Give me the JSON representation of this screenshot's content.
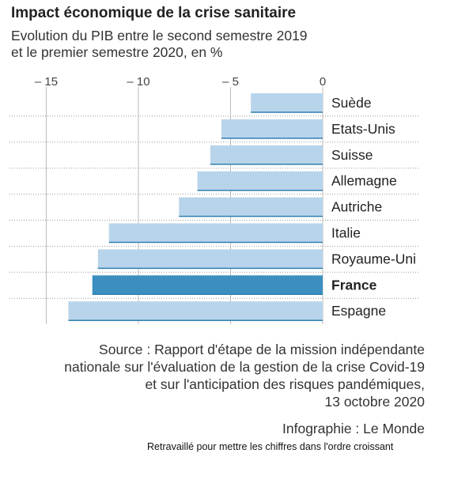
{
  "header": {
    "title": "Impact économique de la crise sanitaire",
    "subtitle_line1": "Evolution du PIB entre le second semestre 2019",
    "subtitle_line2": "et le premier semestre 2020, en %"
  },
  "footer": {
    "source_line1": "Source : Rapport d'étape de la mission indépendante",
    "source_line2": "nationale sur l'évaluation de la gestion de la crise Covid-19",
    "source_line3": "et sur l'anticipation des risques pandémiques,",
    "source_line4": "13 octobre 2020",
    "credit": "Infographie : Le Monde",
    "note": "Retravaillé pour mettre les chiffres dans l'ordre croissant"
  },
  "colors": {
    "bar": "#b8d4ea",
    "bar_highlight": "#3a8fc0",
    "bar_edge": "#2f7fb0",
    "grid": "#bbbbbb",
    "separator": "#999999"
  },
  "chart_data": {
    "type": "bar",
    "orientation": "horizontal",
    "title": "Impact économique de la crise sanitaire",
    "subtitle": "Evolution du PIB entre le second semestre 2019 et le premier semestre 2020, en %",
    "categories": [
      "Suède",
      "Etats-Unis",
      "Suisse",
      "Allemagne",
      "Autriche",
      "Italie",
      "Royaume-Uni",
      "France",
      "Espagne"
    ],
    "values": [
      -3.9,
      -5.5,
      -6.1,
      -6.8,
      -7.8,
      -11.6,
      -12.2,
      -12.5,
      -13.8
    ],
    "highlight": "France",
    "xlim": [
      -15.5,
      0
    ],
    "xticks": [
      -15,
      -10,
      -5,
      0
    ],
    "xtick_labels": [
      "– 15",
      "– 10",
      "– 5",
      "0"
    ],
    "axis_position": "top",
    "grid": true
  }
}
